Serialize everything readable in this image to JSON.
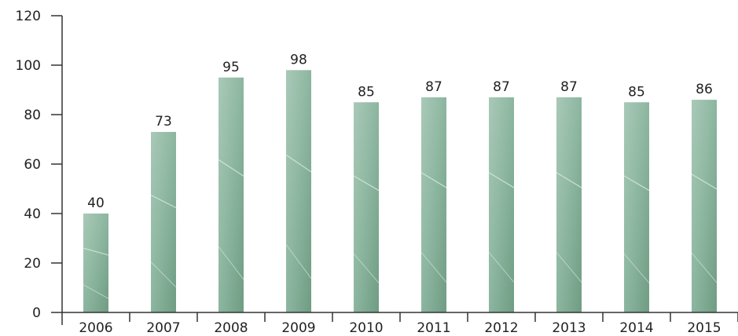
{
  "chart_data": {
    "type": "bar",
    "title": "",
    "xlabel": "",
    "ylabel": "",
    "categories": [
      "2006",
      "2007",
      "2008",
      "2009",
      "2010",
      "2011",
      "2012",
      "2013",
      "2014",
      "2015"
    ],
    "values": [
      40,
      73,
      95,
      98,
      85,
      87,
      87,
      87,
      85,
      86
    ],
    "ylim": [
      0,
      120
    ],
    "yticks": [
      0,
      20,
      40,
      60,
      80,
      100,
      120
    ],
    "grid": false,
    "data_labels": true,
    "colors": {
      "bar_light": "#a9c9b8",
      "bar_mid": "#8fb8a2",
      "bar_dark": "#6f9c83",
      "vein": "#d9ebe0"
    }
  }
}
